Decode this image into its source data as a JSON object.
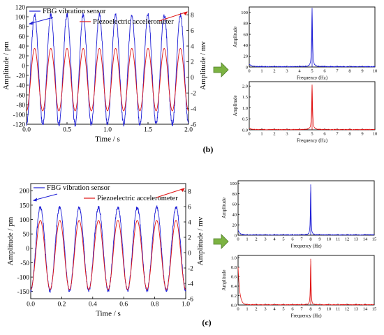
{
  "colors": {
    "fbg": "#1f1fd6",
    "piezo": "#e01414",
    "arrow": "#7cb342",
    "arrow_edge": "#4f7d2a"
  },
  "panels": [
    {
      "label": "(b)"
    },
    {
      "label": "(c)"
    }
  ],
  "chart_data": [
    {
      "type": "line",
      "panel": "b",
      "xlabel": "Time / s",
      "ylabel": "Amplitude / pm",
      "y2label": "Amplitude / mv",
      "xlim": [
        0.0,
        2.0
      ],
      "ylim": [
        -120,
        120
      ],
      "y2lim": [
        -6,
        9
      ],
      "xticks": [
        "0.0",
        "0.5",
        "1.0",
        "1.5",
        "2.0"
      ],
      "yticks": [
        "-120",
        "-100",
        "-80",
        "-60",
        "-40",
        "-20",
        "0",
        "20",
        "40",
        "60",
        "80",
        "100",
        "120"
      ],
      "y2ticks": [
        "-6",
        "-4",
        "-2",
        "0",
        "2",
        "4",
        "6",
        "8"
      ],
      "grid": false,
      "series": [
        {
          "name": "FBG vibration sensor",
          "axis": "left",
          "wave": "sine",
          "frequency_hz": 5,
          "amplitude": 112,
          "offset": -8,
          "phase": 0
        },
        {
          "name": "Piezoelectric accelerometer",
          "axis": "right",
          "wave": "sine",
          "frequency_hz": 5,
          "amplitude": 4.0,
          "offset": -0.3,
          "phase": 0
        }
      ]
    },
    {
      "type": "line",
      "panel": "b",
      "xlabel": "Frequency (Hz)",
      "ylabel": "Amplitude",
      "xlim": [
        0,
        10
      ],
      "ylim": [
        0,
        110
      ],
      "xticks": [
        "0",
        "1",
        "2",
        "3",
        "4",
        "5",
        "6",
        "7",
        "8",
        "9",
        "10"
      ],
      "yticks": [
        "0",
        "20",
        "40",
        "60",
        "80",
        "100"
      ],
      "grid": false,
      "series": [
        {
          "wave": "spectrum",
          "peak_frequency_hz": 5,
          "peak_amplitude": 108,
          "dc_amplitude": 5
        }
      ]
    },
    {
      "type": "line",
      "panel": "b",
      "xlabel": "Frequency (Hz)",
      "ylabel": "Amplitude",
      "xlim": [
        0,
        10
      ],
      "ylim": [
        0,
        2.2
      ],
      "xticks": [
        "0",
        "1",
        "2",
        "3",
        "4",
        "5",
        "6",
        "7",
        "8",
        "9",
        "10"
      ],
      "yticks": [
        "0.0",
        "0.5",
        "1.0",
        "1.5",
        "2.0"
      ],
      "grid": false,
      "series": [
        {
          "wave": "spectrum",
          "peak_frequency_hz": 5,
          "peak_amplitude": 2.05,
          "dc_amplitude": 0.05
        }
      ]
    },
    {
      "type": "line",
      "panel": "c",
      "xlabel": "Time / s",
      "ylabel": "Amplitude / pm",
      "y2label": "Amplitude / mv",
      "xlim": [
        0.0,
        1.0
      ],
      "ylim": [
        -175,
        225
      ],
      "y2lim": [
        -6,
        9
      ],
      "xticks": [
        "0.0",
        "0.2",
        "0.4",
        "0.6",
        "0.8",
        "1.0"
      ],
      "yticks": [
        "-150",
        "-100",
        "-50",
        "0",
        "50",
        "100",
        "150",
        "200"
      ],
      "y2ticks": [
        "-6",
        "-4",
        "-2",
        "0",
        "2",
        "4",
        "6",
        "8"
      ],
      "grid": false,
      "series": [
        {
          "name": "FBG vibration sensor",
          "axis": "left",
          "wave": "sine",
          "frequency_hz": 8,
          "amplitude": 145,
          "offset": -2,
          "phase": 0
        },
        {
          "name": "Piezoelectric accelerometer",
          "axis": "right",
          "wave": "sine",
          "frequency_hz": 8,
          "amplitude": 4.5,
          "offset": -0.3,
          "phase": 0
        }
      ]
    },
    {
      "type": "line",
      "panel": "c",
      "xlabel": "Frequency (Hz)",
      "ylabel": "Amplitude",
      "xlim": [
        0,
        15
      ],
      "ylim": [
        0,
        105
      ],
      "xticks": [
        "0",
        "1",
        "2",
        "3",
        "4",
        "5",
        "6",
        "7",
        "8",
        "9",
        "10",
        "11",
        "12",
        "13",
        "14",
        "15"
      ],
      "yticks": [
        "0",
        "20",
        "40",
        "60",
        "80",
        "100"
      ],
      "grid": false,
      "series": [
        {
          "wave": "spectrum",
          "peak_frequency_hz": 8,
          "peak_amplitude": 98,
          "dc_amplitude": 10
        }
      ]
    },
    {
      "type": "line",
      "panel": "c",
      "xlabel": "Frequency (Hz)",
      "ylabel": "Amplitude",
      "xlim": [
        0,
        15
      ],
      "ylim": [
        0,
        1.05
      ],
      "xticks": [
        "0",
        "1",
        "2",
        "3",
        "4",
        "5",
        "6",
        "7",
        "8",
        "9",
        "10",
        "11",
        "12",
        "13",
        "14",
        "15"
      ],
      "yticks": [
        "0.0",
        "0.2",
        "0.4",
        "0.6",
        "0.8",
        "1.0"
      ],
      "grid": false,
      "series": [
        {
          "wave": "spectrum",
          "peak_frequency_hz": 8,
          "peak_amplitude": 0.98,
          "dc_amplitude": 0.8
        }
      ]
    }
  ]
}
